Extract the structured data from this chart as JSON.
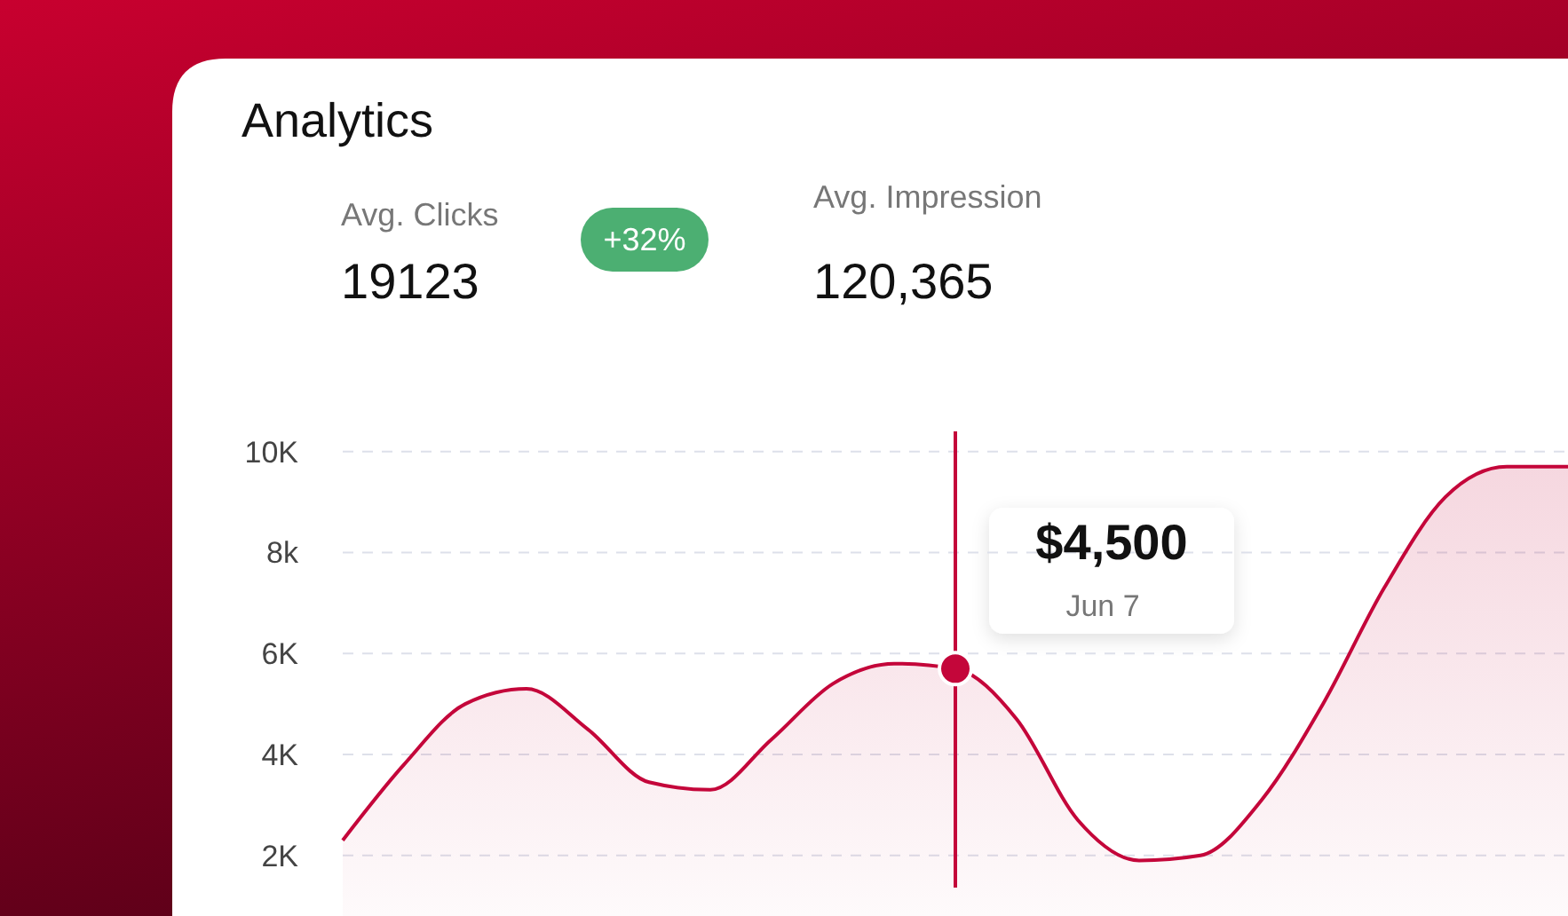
{
  "chart_data": {
    "type": "area",
    "title": "Analytics",
    "annotations": [
      "Avg. Clicks",
      "19123",
      "+32%",
      "Avg. Impression",
      "120,365",
      "$4,500",
      "Jun 7"
    ],
    "categories": [
      null,
      null,
      null,
      null,
      null,
      null,
      null,
      null,
      null,
      null,
      null,
      null,
      null,
      null,
      null,
      null,
      null,
      null,
      null,
      null,
      null
    ],
    "series": [
      {
        "color": "#c4063a",
        "values": [
          2300,
          3800,
          5000,
          5300,
          4500,
          3450,
          3300,
          4300,
          5400,
          5800,
          5700,
          4700,
          2700,
          1900,
          2000,
          3100,
          5000,
          7300,
          9100,
          9700,
          9700
        ]
      }
    ],
    "ylim": [
      800,
      10400
    ],
    "yticks": [
      {
        "value": 2000,
        "label": "2K"
      },
      {
        "value": 4000,
        "label": "4K"
      },
      {
        "value": 6000,
        "label": "6K"
      },
      {
        "value": 8000,
        "label": "8k"
      },
      {
        "value": 10000,
        "label": "10K"
      }
    ],
    "grid": "y",
    "marker": "none",
    "line_style": "solid",
    "tick_labels": "y"
  }
}
